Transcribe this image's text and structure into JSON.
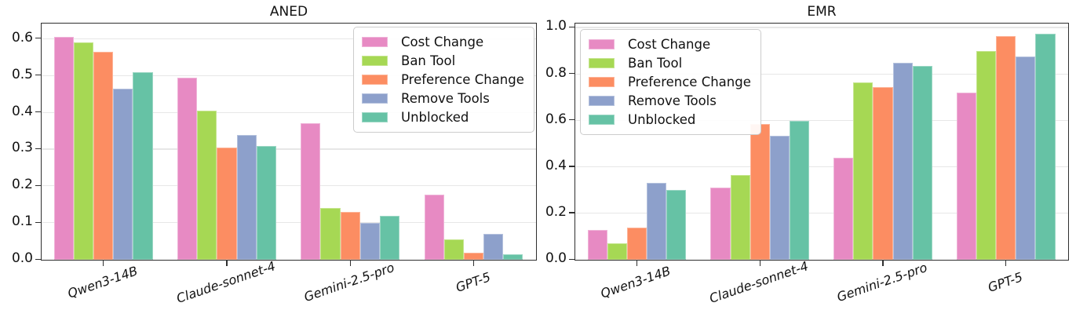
{
  "figure": {
    "background": "#ffffff"
  },
  "chart_data": [
    {
      "type": "bar",
      "title": "ANED",
      "categories": [
        "Qwen3-14B",
        "Claude-sonnet-4",
        "Gemini-2.5-pro",
        "GPT-5"
      ],
      "series": [
        {
          "name": "Cost Change",
          "color": "#e78ac3",
          "values": [
            0.605,
            0.495,
            0.37,
            0.178
          ]
        },
        {
          "name": "Ban Tool",
          "color": "#a6d854",
          "values": [
            0.59,
            0.405,
            0.14,
            0.055
          ]
        },
        {
          "name": "Preference Change",
          "color": "#fc8d62",
          "values": [
            0.565,
            0.305,
            0.13,
            0.02
          ]
        },
        {
          "name": "Remove Tools",
          "color": "#8da0cb",
          "values": [
            0.465,
            0.34,
            0.1,
            0.07
          ]
        },
        {
          "name": "Unblocked",
          "color": "#66c2a5",
          "values": [
            0.51,
            0.31,
            0.12,
            0.015
          ]
        }
      ],
      "ylim": [
        0.0,
        0.64
      ],
      "yticks": [
        0.0,
        0.1,
        0.2,
        0.3,
        0.4,
        0.5,
        0.6
      ],
      "ytick_decimals": 1,
      "grid": true,
      "legend_position": "upper-right"
    },
    {
      "type": "bar",
      "title": "EMR",
      "categories": [
        "Qwen3-14B",
        "Claude-sonnet-4",
        "Gemini-2.5-pro",
        "GPT-5"
      ],
      "series": [
        {
          "name": "Cost Change",
          "color": "#e78ac3",
          "values": [
            0.13,
            0.31,
            0.44,
            0.72
          ]
        },
        {
          "name": "Ban Tool",
          "color": "#a6d854",
          "values": [
            0.07,
            0.365,
            0.765,
            0.9
          ]
        },
        {
          "name": "Preference Change",
          "color": "#fc8d62",
          "values": [
            0.14,
            0.585,
            0.745,
            0.965
          ]
        },
        {
          "name": "Remove Tools",
          "color": "#8da0cb",
          "values": [
            0.33,
            0.535,
            0.85,
            0.875
          ]
        },
        {
          "name": "Unblocked",
          "color": "#66c2a5",
          "values": [
            0.3,
            0.6,
            0.835,
            0.975
          ]
        }
      ],
      "ylim": [
        0.0,
        1.015
      ],
      "yticks": [
        0.0,
        0.2,
        0.4,
        0.6,
        0.8,
        1.0
      ],
      "ytick_decimals": 1,
      "grid": true,
      "legend_position": "upper-left"
    }
  ]
}
